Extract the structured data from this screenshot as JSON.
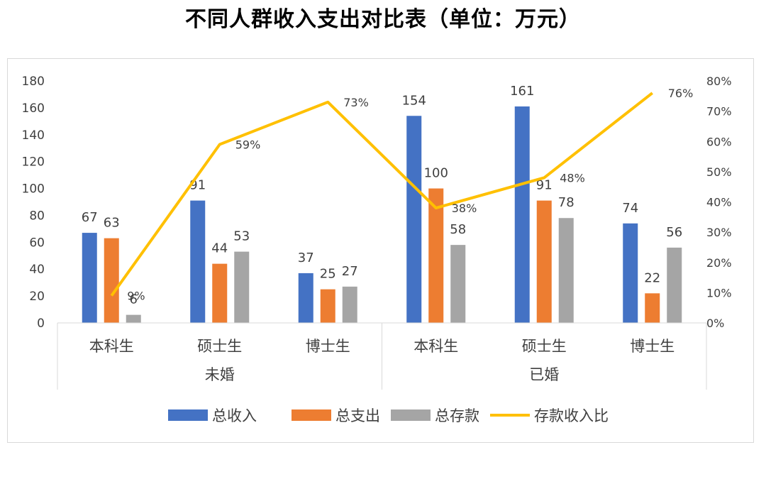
{
  "chart_data": {
    "type": "bar",
    "title": "不同人群收入支出对比表（单位：万元）",
    "groups": [
      {
        "name": "未婚",
        "categories": [
          "本科生",
          "硕士生",
          "博士生"
        ]
      },
      {
        "name": "已婚",
        "categories": [
          "本科生",
          "硕士生",
          "博士生"
        ]
      }
    ],
    "categories": [
      "本科生",
      "硕士生",
      "博士生",
      "本科生",
      "硕士生",
      "博士生"
    ],
    "series": [
      {
        "name": "总收入",
        "type": "bar",
        "color": "#4472c4",
        "values": [
          67,
          91,
          37,
          154,
          161,
          74
        ]
      },
      {
        "name": "总支出",
        "type": "bar",
        "color": "#ed7d31",
        "values": [
          63,
          44,
          25,
          100,
          91,
          22
        ]
      },
      {
        "name": "总存款",
        "type": "bar",
        "color": "#a5a5a5",
        "values": [
          6,
          53,
          27,
          58,
          78,
          56
        ]
      },
      {
        "name": "存款收入比",
        "type": "line",
        "axis": "right",
        "color": "#ffc000",
        "values": [
          9,
          59,
          73,
          38,
          48,
          76
        ],
        "labels": [
          "9%",
          "59%",
          "73%",
          "38%",
          "48%",
          "76%"
        ]
      }
    ],
    "ylim": [
      0,
      180
    ],
    "yticks": [
      0,
      20,
      40,
      60,
      80,
      100,
      120,
      140,
      160,
      180
    ],
    "y2lim": [
      0,
      80
    ],
    "y2ticks": [
      "0%",
      "10%",
      "20%",
      "30%",
      "40%",
      "50%",
      "60%",
      "70%",
      "80%"
    ],
    "legend_position": "bottom"
  }
}
